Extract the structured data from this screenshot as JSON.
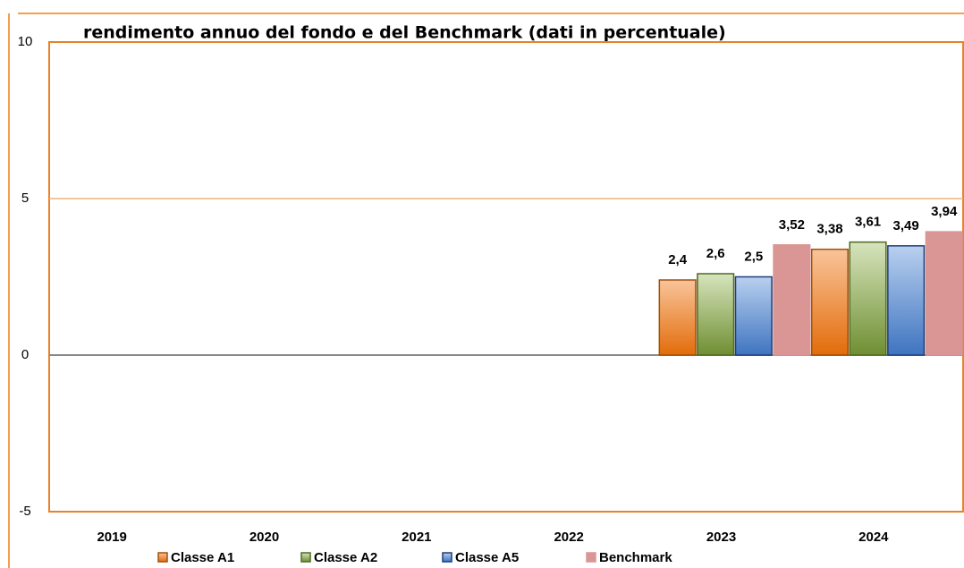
{
  "chart_data": {
    "type": "bar",
    "title": "rendimento annuo del fondo e del Benchmark (dati in percentuale)",
    "categories": [
      "2019",
      "2020",
      "2021",
      "2022",
      "2023",
      "2024"
    ],
    "series": [
      {
        "name": "Classe A1",
        "color": "#e8711a",
        "values": [
          null,
          null,
          null,
          null,
          2.4,
          3.38
        ],
        "value_labels": [
          null,
          null,
          null,
          null,
          "2,4",
          "3,38"
        ]
      },
      {
        "name": "Classe A2",
        "color": "#8fb050",
        "values": [
          null,
          null,
          null,
          null,
          2.6,
          3.61
        ],
        "value_labels": [
          null,
          null,
          null,
          null,
          "2,6",
          "3,61"
        ]
      },
      {
        "name": "Classe A5",
        "color": "#5a8fd6",
        "values": [
          null,
          null,
          null,
          null,
          2.5,
          3.49
        ],
        "value_labels": [
          null,
          null,
          null,
          null,
          "2,5",
          "3,49"
        ]
      },
      {
        "name": "Benchmark",
        "color": "#d4908e",
        "values": [
          null,
          null,
          null,
          null,
          3.52,
          3.94
        ],
        "value_labels": [
          null,
          null,
          null,
          null,
          "3,52",
          "3,94"
        ]
      }
    ],
    "ylim": [
      -5,
      10
    ],
    "yticks": [
      -5,
      0,
      5,
      10
    ],
    "grid": true
  }
}
